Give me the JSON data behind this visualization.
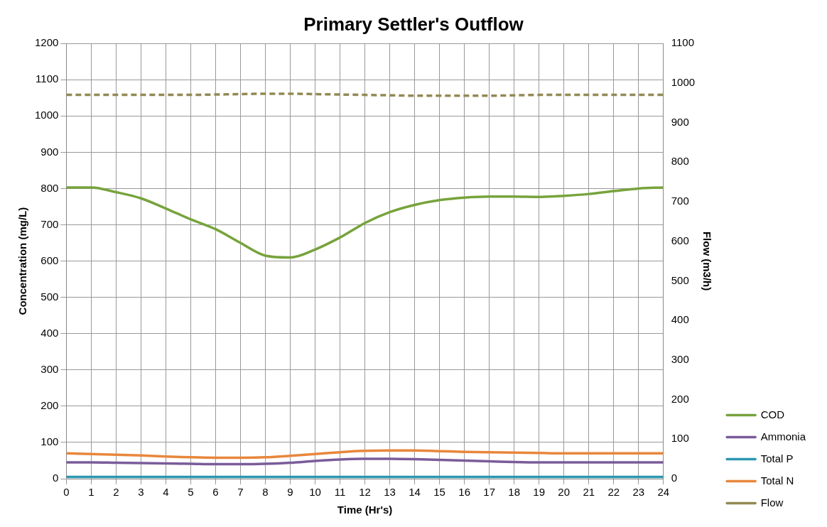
{
  "chart_data": {
    "type": "line",
    "title": "Primary Settler's Outflow",
    "xlabel": "Time (Hr's)",
    "ylabel": "Concentration (mg/L)",
    "y2label": "Flow (m3/h)",
    "x": [
      0,
      1,
      2,
      3,
      4,
      5,
      6,
      7,
      8,
      9,
      10,
      11,
      12,
      13,
      14,
      15,
      16,
      17,
      18,
      19,
      20,
      21,
      22,
      23,
      24
    ],
    "xlim": [
      0,
      24
    ],
    "xticks": [
      0,
      1,
      2,
      3,
      4,
      5,
      6,
      7,
      8,
      9,
      10,
      11,
      12,
      13,
      14,
      15,
      16,
      17,
      18,
      19,
      20,
      21,
      22,
      23,
      24
    ],
    "ylim": [
      0,
      1200
    ],
    "yticks": [
      0,
      100,
      200,
      300,
      400,
      500,
      600,
      700,
      800,
      900,
      1000,
      1100,
      1200
    ],
    "y2lim": [
      0,
      1100
    ],
    "y2ticks": [
      0,
      100,
      200,
      300,
      400,
      500,
      600,
      700,
      800,
      900,
      1000,
      1100
    ],
    "grid": true,
    "legend": "right",
    "marker": "none",
    "series": [
      {
        "name": "COD",
        "color": "#77a33c",
        "values": [
          803,
          803,
          790,
          773,
          745,
          715,
          688,
          650,
          615,
          610,
          632,
          665,
          705,
          735,
          755,
          768,
          775,
          778,
          778,
          777,
          780,
          785,
          793,
          800,
          803
        ]
      },
      {
        "name": "Ammonia",
        "color": "#7a5c9a",
        "values": [
          45,
          45,
          44,
          43,
          42,
          41,
          40,
          40,
          41,
          44,
          49,
          53,
          55,
          55,
          54,
          52,
          50,
          48,
          46,
          45,
          45,
          45,
          45,
          45,
          45
        ]
      },
      {
        "name": "Total P",
        "color": "#2e97b0",
        "values": [
          5,
          5,
          5,
          5,
          5,
          5,
          5,
          5,
          5,
          5,
          5,
          5,
          5,
          5,
          5,
          5,
          5,
          5,
          5,
          5,
          5,
          5,
          5,
          5,
          5
        ]
      },
      {
        "name": "Total N",
        "color": "#e8873c",
        "values": [
          70,
          68,
          66,
          64,
          61,
          59,
          58,
          58,
          59,
          63,
          68,
          73,
          77,
          78,
          78,
          76,
          74,
          73,
          72,
          71,
          70,
          70,
          70,
          70,
          70
        ]
      },
      {
        "name": "Flow",
        "color": "#938953",
        "axis": "y2",
        "line_style": "dashed",
        "values": [
          970,
          970,
          970,
          970,
          970,
          970,
          971,
          972,
          973,
          973,
          972,
          971,
          970,
          969,
          968,
          968,
          968,
          968,
          969,
          970,
          970,
          970,
          970,
          970,
          970
        ]
      }
    ]
  }
}
